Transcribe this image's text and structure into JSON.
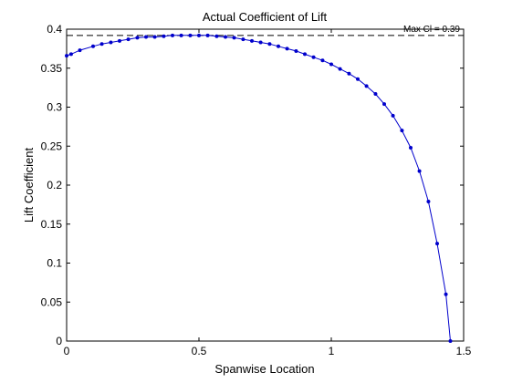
{
  "chart_data": {
    "type": "line",
    "title": "Actual Coefficient of Lift",
    "xlabel": "Spanwise Location",
    "ylabel": "Lift Coefficient",
    "xlim": [
      0,
      1.5
    ],
    "ylim": [
      0,
      0.4
    ],
    "xticks": [
      0,
      0.5,
      1,
      1.5
    ],
    "xtick_labels": [
      "0",
      "0.5",
      "1",
      "1.5"
    ],
    "yticks": [
      0,
      0.05,
      0.1,
      0.15,
      0.2,
      0.25,
      0.3,
      0.35,
      0.4
    ],
    "ytick_labels": [
      "0",
      "0.05",
      "0.1",
      "0.15",
      "0.2",
      "0.25",
      "0.3",
      "0.35",
      "0.4"
    ],
    "grid": false,
    "line_color": "#0000cc",
    "reference_line": {
      "y": 0.392,
      "style": "dashed",
      "color": "#000000"
    },
    "annotation": "Max Cl = 0.39",
    "series": [
      {
        "x": [
          0,
          0.017,
          0.05,
          0.1,
          0.133,
          0.167,
          0.2,
          0.233,
          0.267,
          0.3,
          0.333,
          0.367,
          0.4,
          0.433,
          0.467,
          0.5,
          0.533,
          0.567,
          0.6,
          0.633,
          0.667,
          0.7,
          0.733,
          0.767,
          0.8,
          0.833,
          0.867,
          0.9,
          0.933,
          0.967,
          1.0,
          1.033,
          1.067,
          1.1,
          1.133,
          1.167,
          1.2,
          1.233,
          1.267,
          1.3,
          1.333,
          1.367,
          1.4,
          1.433,
          1.45
        ],
        "values": [
          0.366,
          0.368,
          0.373,
          0.378,
          0.381,
          0.383,
          0.385,
          0.387,
          0.389,
          0.39,
          0.39,
          0.391,
          0.392,
          0.392,
          0.392,
          0.392,
          0.392,
          0.391,
          0.39,
          0.389,
          0.387,
          0.385,
          0.383,
          0.381,
          0.378,
          0.375,
          0.372,
          0.368,
          0.364,
          0.36,
          0.355,
          0.349,
          0.343,
          0.336,
          0.327,
          0.317,
          0.304,
          0.289,
          0.27,
          0.248,
          0.218,
          0.179,
          0.125,
          0.06,
          0.0
        ]
      }
    ]
  }
}
